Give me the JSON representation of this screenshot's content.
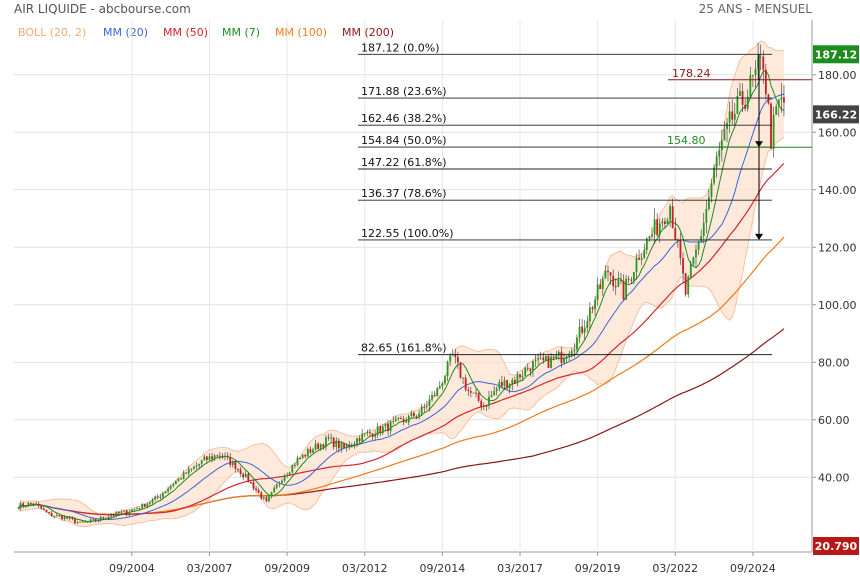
{
  "header": {
    "title": "AIR LIQUIDE - abcbourse.com",
    "period": "25 ANS - MENSUEL"
  },
  "chart_data": {
    "type": "candlestick",
    "legend": [
      {
        "label": "BOLL (20, 2)",
        "color": "#f4a978"
      },
      {
        "label": "MM (20)",
        "color": "#3a66d8"
      },
      {
        "label": "MM (50)",
        "color": "#d8242c"
      },
      {
        "label": "MM (7)",
        "color": "#1f8c1f"
      },
      {
        "label": "MM (100)",
        "color": "#f07c1c"
      },
      {
        "label": "MM (200)",
        "color": "#8b1818"
      }
    ],
    "x_ticks": [
      "09/2004",
      "03/2007",
      "09/2009",
      "03/2012",
      "09/2014",
      "03/2017",
      "09/2019",
      "03/2022",
      "09/2024"
    ],
    "y_ticks": [
      40,
      60,
      80,
      100,
      120,
      140,
      160,
      180
    ],
    "ylim": [
      14,
      190
    ],
    "fibonacci_levels": [
      {
        "value": 187.12,
        "label": "187.12  (0.0%)"
      },
      {
        "value": 171.88,
        "label": "171.88  (23.6%)"
      },
      {
        "value": 162.46,
        "label": "162.46  (38.2%)"
      },
      {
        "value": 154.84,
        "label": "154.84  (50.0%)"
      },
      {
        "value": 147.22,
        "label": "147.22  (61.8%)"
      },
      {
        "value": 136.37,
        "label": "136.37  (78.6%)"
      },
      {
        "value": 122.55,
        "label": "122.55  (100.0%)"
      },
      {
        "value": 82.65,
        "label": "82.65  (161.8%)"
      }
    ],
    "annotations": [
      {
        "value": 178.24,
        "label": "178.24",
        "color": "#8b1818"
      },
      {
        "value": 154.8,
        "label": "154.80",
        "color": "#1f8c1f"
      }
    ],
    "price_badges": [
      {
        "value": 187.12,
        "label": "187.12",
        "color": "#1f8c1f"
      },
      {
        "value": 166.22,
        "label": "166.22",
        "color": "#444444"
      },
      {
        "value": 14,
        "label": "20.790",
        "color": "#b81818"
      }
    ],
    "close_series": [
      [
        2001.0,
        30
      ],
      [
        2001.5,
        31
      ],
      [
        2002.0,
        27
      ],
      [
        2002.5,
        26
      ],
      [
        2003.0,
        24
      ],
      [
        2003.5,
        25
      ],
      [
        2004.0,
        27
      ],
      [
        2004.5,
        28
      ],
      [
        2005.0,
        30
      ],
      [
        2005.5,
        33
      ],
      [
        2006.0,
        38
      ],
      [
        2006.5,
        42
      ],
      [
        2007.0,
        46
      ],
      [
        2007.5,
        48
      ],
      [
        2008.0,
        44
      ],
      [
        2008.5,
        38
      ],
      [
        2009.0,
        31
      ],
      [
        2009.5,
        40
      ],
      [
        2010.0,
        46
      ],
      [
        2010.5,
        50
      ],
      [
        2011.0,
        53
      ],
      [
        2011.5,
        50
      ],
      [
        2012.0,
        54
      ],
      [
        2012.5,
        56
      ],
      [
        2013.0,
        58
      ],
      [
        2013.5,
        60
      ],
      [
        2014.0,
        63
      ],
      [
        2014.5,
        70
      ],
      [
        2015.0,
        82
      ],
      [
        2015.5,
        70
      ],
      [
        2016.0,
        65
      ],
      [
        2016.5,
        72
      ],
      [
        2017.0,
        74
      ],
      [
        2017.5,
        79
      ],
      [
        2018.0,
        80
      ],
      [
        2018.5,
        82
      ],
      [
        2019.0,
        88
      ],
      [
        2019.5,
        100
      ],
      [
        2020.0,
        112
      ],
      [
        2020.5,
        104
      ],
      [
        2021.0,
        118
      ],
      [
        2021.5,
        126
      ],
      [
        2022.0,
        135
      ],
      [
        2022.5,
        104
      ],
      [
        2023.0,
        125
      ],
      [
        2023.5,
        150
      ],
      [
        2024.0,
        165
      ],
      [
        2024.5,
        174
      ],
      [
        2025.0,
        185
      ],
      [
        2025.25,
        158
      ],
      [
        2025.5,
        170
      ]
    ]
  }
}
